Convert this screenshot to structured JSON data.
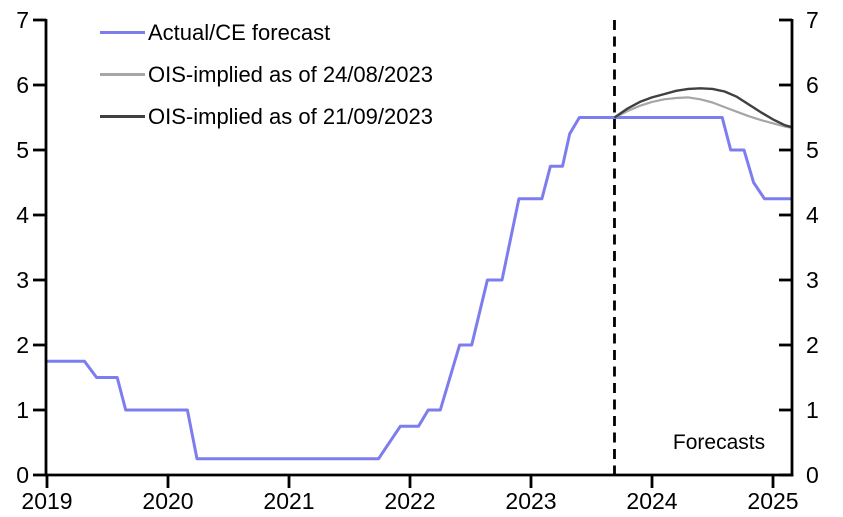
{
  "legend": {
    "items": [
      {
        "label": "Actual/CE forecast",
        "color": "#7d7df0"
      },
      {
        "label": "OIS-implied as of 24/08/2023",
        "color": "#a6a6a6"
      },
      {
        "label": "OIS-implied as of 21/09/2023",
        "color": "#404040"
      }
    ]
  },
  "annotations": {
    "forecasts": "Forecasts"
  },
  "chart_data": {
    "type": "line",
    "title": "",
    "xlabel": "",
    "ylabel": "",
    "xlim": [
      2019,
      2025.17
    ],
    "ylim": [
      0,
      7
    ],
    "x_ticks": [
      2019,
      2020,
      2021,
      2022,
      2023,
      2024,
      2025
    ],
    "y_ticks": [
      0,
      1,
      2,
      3,
      4,
      5,
      6,
      7
    ],
    "dual_y_axis": true,
    "grid": false,
    "legend_position": "top-left",
    "forecast_divider_x": 2023.69,
    "series": [
      {
        "name": "Actual/CE forecast",
        "color": "#7d7df0",
        "stroke_width": 3,
        "points": [
          [
            2019.0,
            1.75
          ],
          [
            2019.31,
            1.75
          ],
          [
            2019.41,
            1.5
          ],
          [
            2019.58,
            1.5
          ],
          [
            2019.65,
            1.0
          ],
          [
            2020.16,
            1.0
          ],
          [
            2020.24,
            0.25
          ],
          [
            2021.74,
            0.25
          ],
          [
            2021.92,
            0.75
          ],
          [
            2022.07,
            0.75
          ],
          [
            2022.15,
            1.0
          ],
          [
            2022.25,
            1.0
          ],
          [
            2022.41,
            2.0
          ],
          [
            2022.51,
            2.0
          ],
          [
            2022.64,
            3.0
          ],
          [
            2022.76,
            3.0
          ],
          [
            2022.9,
            4.25
          ],
          [
            2023.09,
            4.25
          ],
          [
            2023.16,
            4.75
          ],
          [
            2023.26,
            4.75
          ],
          [
            2023.32,
            5.25
          ],
          [
            2023.4,
            5.5
          ],
          [
            2024.58,
            5.5
          ],
          [
            2024.65,
            5.0
          ],
          [
            2024.76,
            5.0
          ],
          [
            2024.84,
            4.5
          ],
          [
            2024.93,
            4.25
          ],
          [
            2025.16,
            4.25
          ]
        ]
      },
      {
        "name": "OIS-implied as of 24/08/2023",
        "color": "#a6a6a6",
        "stroke_width": 2.2,
        "points": [
          [
            2023.69,
            5.5
          ],
          [
            2023.8,
            5.6
          ],
          [
            2023.9,
            5.68
          ],
          [
            2024.0,
            5.74
          ],
          [
            2024.1,
            5.78
          ],
          [
            2024.2,
            5.8
          ],
          [
            2024.3,
            5.81
          ],
          [
            2024.4,
            5.78
          ],
          [
            2024.5,
            5.73
          ],
          [
            2024.6,
            5.66
          ],
          [
            2024.7,
            5.59
          ],
          [
            2024.8,
            5.52
          ],
          [
            2024.9,
            5.46
          ],
          [
            2025.0,
            5.41
          ],
          [
            2025.1,
            5.36
          ],
          [
            2025.16,
            5.34
          ]
        ]
      },
      {
        "name": "OIS-implied as of 21/09/2023",
        "color": "#404040",
        "stroke_width": 2.4,
        "points": [
          [
            2023.69,
            5.5
          ],
          [
            2023.8,
            5.64
          ],
          [
            2023.9,
            5.74
          ],
          [
            2024.0,
            5.81
          ],
          [
            2024.1,
            5.86
          ],
          [
            2024.2,
            5.91
          ],
          [
            2024.3,
            5.94
          ],
          [
            2024.4,
            5.95
          ],
          [
            2024.5,
            5.94
          ],
          [
            2024.6,
            5.9
          ],
          [
            2024.7,
            5.82
          ],
          [
            2024.8,
            5.7
          ],
          [
            2024.9,
            5.58
          ],
          [
            2025.0,
            5.47
          ],
          [
            2025.1,
            5.38
          ],
          [
            2025.16,
            5.35
          ]
        ]
      }
    ]
  }
}
